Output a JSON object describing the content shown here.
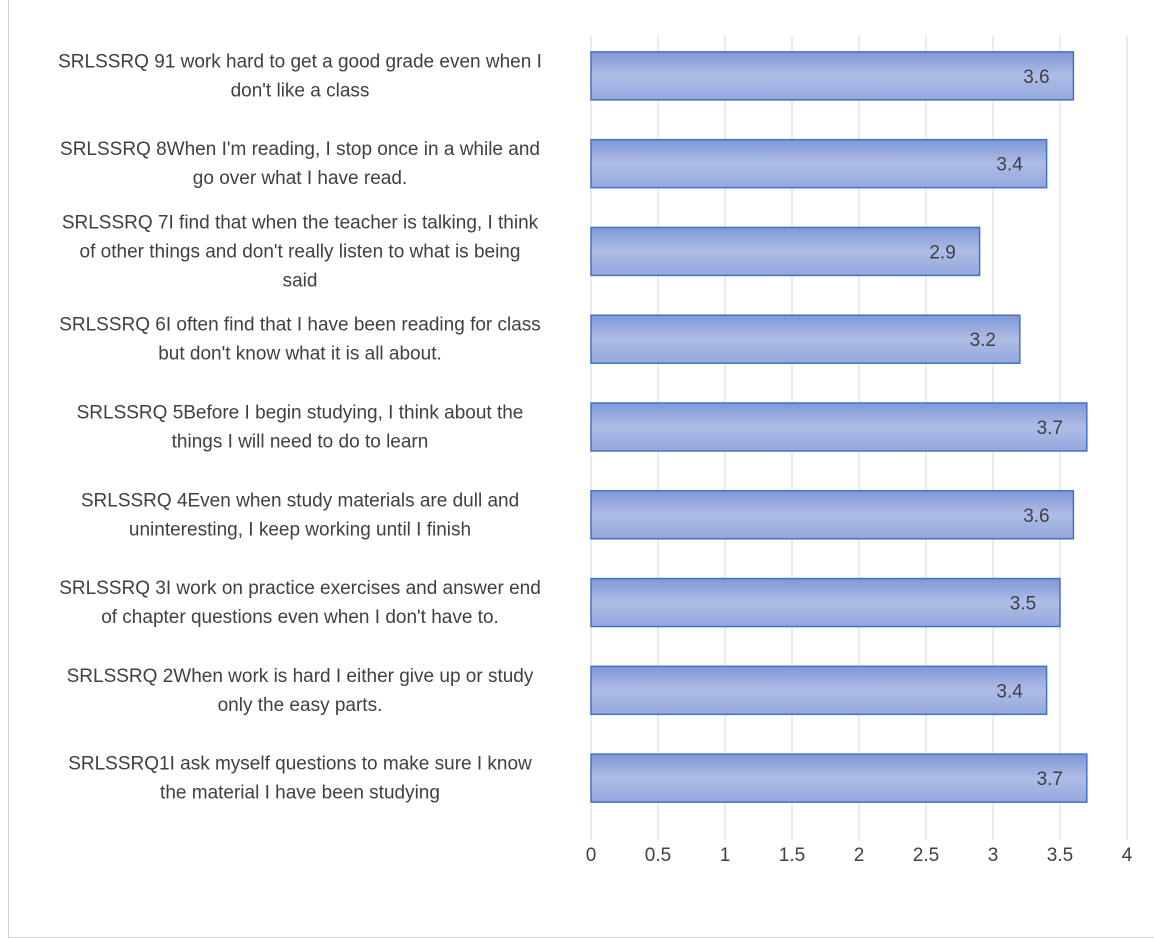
{
  "chart_data": {
    "type": "bar",
    "orientation": "horizontal",
    "categories": [
      [
        "SRLSSRQ 91 work hard to get a good grade even when I",
        "don't like a class"
      ],
      [
        "SRLSSRQ 8When I'm reading, I stop once in a while and",
        "go over what I have read."
      ],
      [
        "SRLSSRQ 7I find that when the teacher is talking, I think",
        "of other things and don't really listen to what is being",
        "said"
      ],
      [
        "SRLSSRQ 6I often find that I have been reading for class",
        "but don't know what it is all about."
      ],
      [
        "SRLSSRQ 5Before I begin studying, I think about the",
        "things I will need to do to learn"
      ],
      [
        "SRLSSRQ 4Even when study materials are dull and",
        "uninteresting, I keep working until I finish"
      ],
      [
        "SRLSSRQ 3I work on practice exercises and answer end",
        "of chapter questions even when I don't have to."
      ],
      [
        "SRLSSRQ 2When work is hard I either give up or study",
        "only the easy parts."
      ],
      [
        "SRLSSRQ1I ask myself questions to make sure I know",
        "the material I have been studying"
      ]
    ],
    "values": [
      3.6,
      3.4,
      2.9,
      3.2,
      3.7,
      3.6,
      3.5,
      3.4,
      3.7
    ],
    "data_labels": [
      "3.6",
      "3.4",
      "2.9",
      "3.2",
      "3.7",
      "3.6",
      "3.5",
      "3.4",
      "3.7"
    ],
    "xlim": [
      0,
      4
    ],
    "xticks": [
      0,
      0.5,
      1,
      1.5,
      2,
      2.5,
      3,
      3.5,
      4
    ],
    "xtick_labels": [
      "0",
      "0.5",
      "1",
      "1.5",
      "2",
      "2.5",
      "3",
      "3.5",
      "4"
    ],
    "grid": true,
    "colors": {
      "bar_top": "#7f97d6",
      "bar_mid": "#aebde6",
      "bar_bottom": "#93a8de",
      "bar_stroke": "#4472c4",
      "grid": "#d9d9d9",
      "text": "#404040"
    }
  }
}
